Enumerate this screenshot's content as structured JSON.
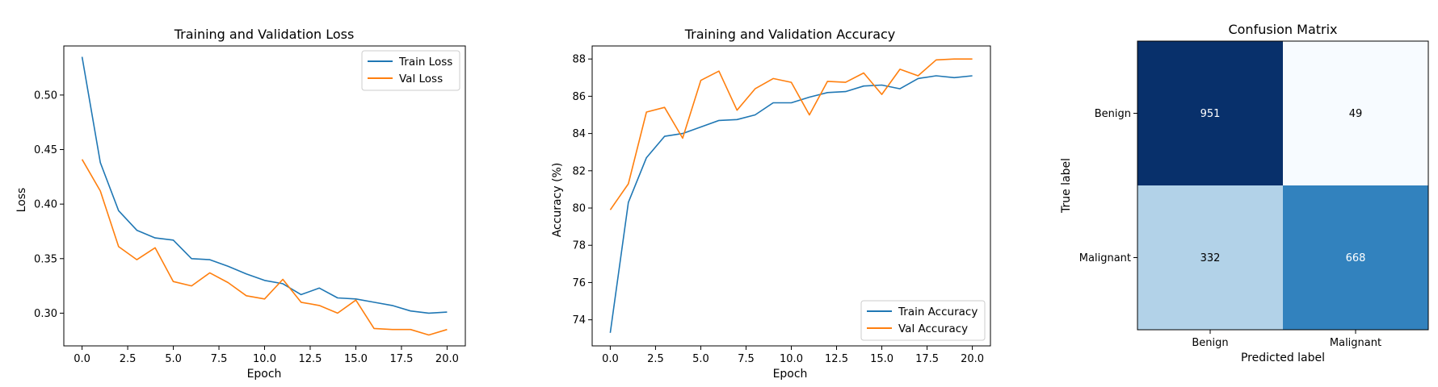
{
  "chart_data": [
    {
      "type": "line",
      "title": "Training and Validation Loss",
      "xlabel": "Epoch",
      "ylabel": "Loss",
      "xlim": [
        -1,
        21
      ],
      "ylim": [
        0.27,
        0.545
      ],
      "xticks": [
        0.0,
        2.5,
        5.0,
        7.5,
        10.0,
        12.5,
        15.0,
        17.5,
        20.0
      ],
      "yticks": [
        0.3,
        0.35,
        0.4,
        0.45,
        0.5
      ],
      "xtick_labels": [
        "0.0",
        "2.5",
        "5.0",
        "7.5",
        "10.0",
        "12.5",
        "15.0",
        "17.5",
        "20.0"
      ],
      "ytick_labels": [
        "0.30",
        "0.35",
        "0.40",
        "0.45",
        "0.50"
      ],
      "legend": "top-right",
      "x": [
        0,
        1,
        2,
        3,
        4,
        5,
        6,
        7,
        8,
        9,
        10,
        11,
        12,
        13,
        14,
        15,
        16,
        17,
        18,
        19,
        20
      ],
      "series": [
        {
          "name": "Train Loss",
          "color": "#1f77b4",
          "values": [
            0.535,
            0.438,
            0.394,
            0.376,
            0.369,
            0.367,
            0.35,
            0.349,
            0.343,
            0.336,
            0.33,
            0.327,
            0.317,
            0.323,
            0.314,
            0.313,
            0.31,
            0.307,
            0.302,
            0.3,
            0.301
          ]
        },
        {
          "name": "Val Loss",
          "color": "#ff7f0e",
          "values": [
            0.441,
            0.412,
            0.361,
            0.349,
            0.36,
            0.329,
            0.325,
            0.337,
            0.328,
            0.316,
            0.313,
            0.331,
            0.31,
            0.307,
            0.3,
            0.312,
            0.286,
            0.285,
            0.285,
            0.28,
            0.285
          ]
        }
      ]
    },
    {
      "type": "line",
      "title": "Training and Validation Accuracy",
      "xlabel": "Epoch",
      "ylabel": "Accuracy (%)",
      "xlim": [
        -1,
        21
      ],
      "ylim": [
        72.6,
        88.7
      ],
      "xticks": [
        0.0,
        2.5,
        5.0,
        7.5,
        10.0,
        12.5,
        15.0,
        17.5,
        20.0
      ],
      "yticks": [
        74,
        76,
        78,
        80,
        82,
        84,
        86,
        88
      ],
      "xtick_labels": [
        "0.0",
        "2.5",
        "5.0",
        "7.5",
        "10.0",
        "12.5",
        "15.0",
        "17.5",
        "20.0"
      ],
      "ytick_labels": [
        "74",
        "76",
        "78",
        "80",
        "82",
        "84",
        "86",
        "88"
      ],
      "legend": "bottom-right",
      "x": [
        0,
        1,
        2,
        3,
        4,
        5,
        6,
        7,
        8,
        9,
        10,
        11,
        12,
        13,
        14,
        15,
        16,
        17,
        18,
        19,
        20
      ],
      "series": [
        {
          "name": "Train Accuracy",
          "color": "#1f77b4",
          "values": [
            73.3,
            80.3,
            82.7,
            83.85,
            84.0,
            84.35,
            84.7,
            84.75,
            85.0,
            85.65,
            85.65,
            85.95,
            86.2,
            86.25,
            86.55,
            86.6,
            86.4,
            86.95,
            87.1,
            87.0,
            87.1
          ]
        },
        {
          "name": "Val Accuracy",
          "color": "#ff7f0e",
          "values": [
            79.9,
            81.3,
            85.15,
            85.4,
            83.75,
            86.85,
            87.35,
            85.25,
            86.4,
            86.95,
            86.75,
            85.0,
            86.8,
            86.75,
            87.25,
            86.1,
            87.45,
            87.1,
            87.95,
            88.0,
            88.0
          ]
        }
      ]
    },
    {
      "type": "heatmap",
      "title": "Confusion Matrix",
      "xlabel": "Predicted label",
      "ylabel": "True label",
      "x_categories": [
        "Benign",
        "Malignant"
      ],
      "y_categories": [
        "Benign",
        "Malignant"
      ],
      "values": [
        [
          951,
          49
        ],
        [
          332,
          668
        ]
      ],
      "cell_labels": [
        [
          "951",
          "49"
        ],
        [
          "332",
          "668"
        ]
      ],
      "colormap": "Blues"
    }
  ]
}
